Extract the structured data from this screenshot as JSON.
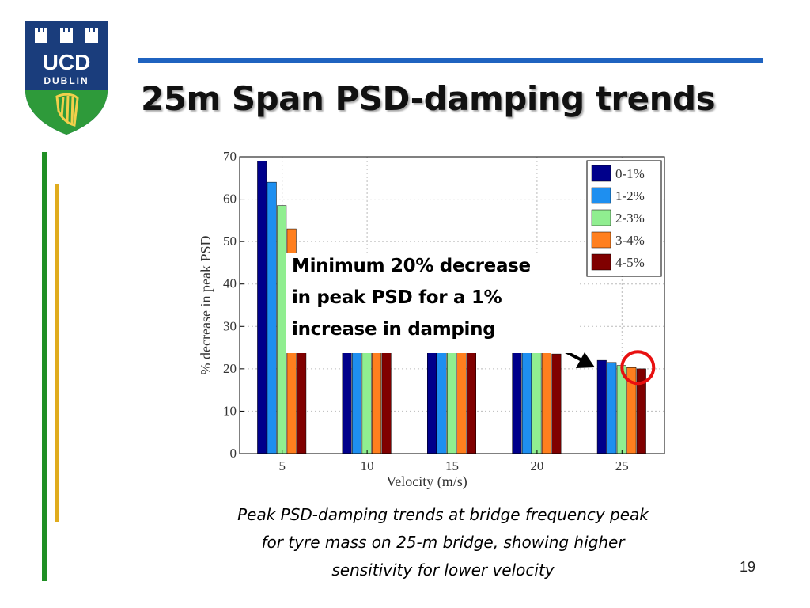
{
  "logo": {
    "line1": "UCD",
    "line2": "DUBLIN"
  },
  "slide": {
    "title": "25m Span PSD-damping trends",
    "callout": [
      "Minimum 20% decrease",
      "in peak PSD for a 1%",
      "increase in damping"
    ],
    "caption": [
      "Peak PSD-damping trends at bridge frequency peak",
      "for tyre mass on 25-m bridge, showing higher",
      "sensitivity for lower velocity"
    ],
    "page_number": "19"
  },
  "chart_data": {
    "type": "bar",
    "categories": [
      "5",
      "10",
      "15",
      "20",
      "25"
    ],
    "series": [
      {
        "name": "0-1%",
        "color": "#00008b",
        "values": [
          69,
          24,
          24,
          24,
          22
        ]
      },
      {
        "name": "1-2%",
        "color": "#1e8ff0",
        "values": [
          64,
          24,
          24,
          24,
          21.5
        ]
      },
      {
        "name": "2-3%",
        "color": "#90ee90",
        "values": [
          58.5,
          24,
          24,
          24,
          20.8
        ]
      },
      {
        "name": "3-4%",
        "color": "#ff7f1e",
        "values": [
          53,
          24,
          24,
          24,
          20.3
        ]
      },
      {
        "name": "4-5%",
        "color": "#800000",
        "values": [
          24,
          24,
          24,
          23.5,
          20
        ]
      }
    ],
    "xlabel": "Velocity (m/s)",
    "ylabel": "% decrease in peak PSD",
    "ylim": [
      0,
      70
    ],
    "yticks": [
      "0",
      "10",
      "20",
      "30",
      "40",
      "50",
      "60",
      "70"
    ],
    "grid": true,
    "legend": "top-right",
    "highlight_color": "#e81010"
  }
}
